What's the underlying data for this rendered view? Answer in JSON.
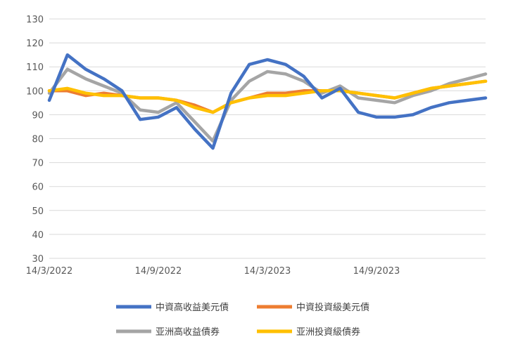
{
  "chart_data": {
    "type": "line",
    "title": "",
    "xlabel": "",
    "ylabel": "",
    "ylim": [
      30,
      130
    ],
    "y_ticks": [
      "30",
      "40",
      "50",
      "60",
      "70",
      "80",
      "90",
      "100",
      "110",
      "120",
      "130"
    ],
    "x_tick_labels": [
      "14/3/2022",
      "14/9/2022",
      "14/3/2023",
      "14/9/2023"
    ],
    "grid": "horizontal",
    "legend_position": "bottom",
    "x": [
      "2022-03",
      "2022-04",
      "2022-05",
      "2022-06",
      "2022-07",
      "2022-08",
      "2022-09",
      "2022-10",
      "2022-11",
      "2022-12",
      "2023-01",
      "2023-02",
      "2023-03",
      "2023-04",
      "2023-05",
      "2023-06",
      "2023-07",
      "2023-08",
      "2023-09",
      "2023-10",
      "2023-11",
      "2023-12",
      "2024-01",
      "2024-02",
      "2024-03"
    ],
    "series": [
      {
        "name": "中資高收益美元債",
        "color": "#4472C4",
        "values": [
          96,
          115,
          109,
          105,
          100,
          88,
          89,
          93,
          84,
          76,
          99,
          111,
          113,
          111,
          106,
          97,
          101,
          91,
          89,
          89,
          90,
          93,
          95,
          96,
          97
        ]
      },
      {
        "name": "中資投資級美元債",
        "color": "#ED7D31",
        "values": [
          100,
          100,
          98,
          99,
          98,
          97,
          97,
          96,
          94,
          91,
          95,
          97,
          99,
          99,
          100,
          100,
          100,
          99,
          98,
          97,
          99,
          101,
          102,
          103,
          104
        ]
      },
      {
        "name": "亚洲高收益債券",
        "color": "#A5A5A5",
        "values": [
          99,
          109,
          105,
          102,
          99,
          92,
          91,
          95,
          87,
          79,
          96,
          104,
          108,
          107,
          104,
          99,
          102,
          97,
          96,
          95,
          98,
          100,
          103,
          105,
          107
        ]
      },
      {
        "name": "亚洲投資級債券",
        "color": "#FFC000",
        "values": [
          100,
          101,
          99,
          98,
          98,
          97,
          97,
          96,
          93,
          91,
          95,
          97,
          98,
          98,
          99,
          100,
          100,
          99,
          98,
          97,
          99,
          101,
          102,
          103,
          104
        ]
      }
    ]
  }
}
